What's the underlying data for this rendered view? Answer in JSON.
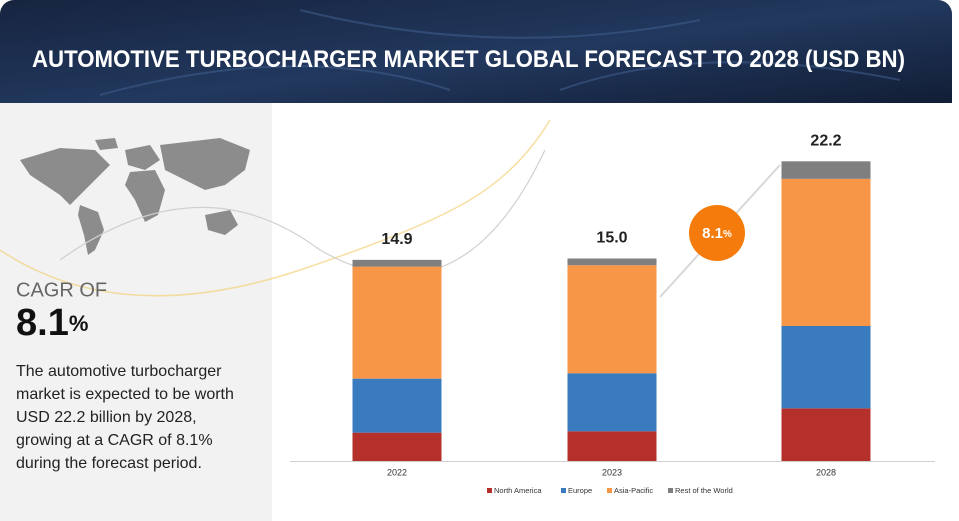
{
  "header": {
    "title_part1": "AUTOMOTIVE TURBOCHARGER MARKET",
    "title_part2": "GLOBAL FORECAST TO 2028 (USD BN)"
  },
  "sidebar": {
    "cagr_label": "CAGR OF",
    "cagr_value": "8.1",
    "cagr_unit": "%",
    "description": "The automotive turbocharger market is expected to be worth USD 22.2 billion by 2028, growing at a CAGR of 8.1% during the forecast period."
  },
  "chart_data": {
    "type": "stacked_bar",
    "categories": [
      "2022",
      "2023",
      "2028"
    ],
    "series": [
      {
        "name": "North America",
        "color": "#b5302a",
        "values": [
          2.1,
          2.2,
          3.9
        ]
      },
      {
        "name": "Europe",
        "color": "#3a7bbf",
        "values": [
          4.0,
          4.3,
          6.1
        ]
      },
      {
        "name": "Asia-Pacific",
        "color": "#f79646",
        "values": [
          8.3,
          8.0,
          10.9
        ]
      },
      {
        "name": "Rest of the World",
        "color": "#7f7f7f",
        "values": [
          0.5,
          0.5,
          1.3
        ]
      }
    ],
    "totals": {
      "values": [
        14.9,
        15.0,
        22.2
      ],
      "value_labels": [
        "14.9",
        "15.0",
        "22.2"
      ]
    }
  }
}
